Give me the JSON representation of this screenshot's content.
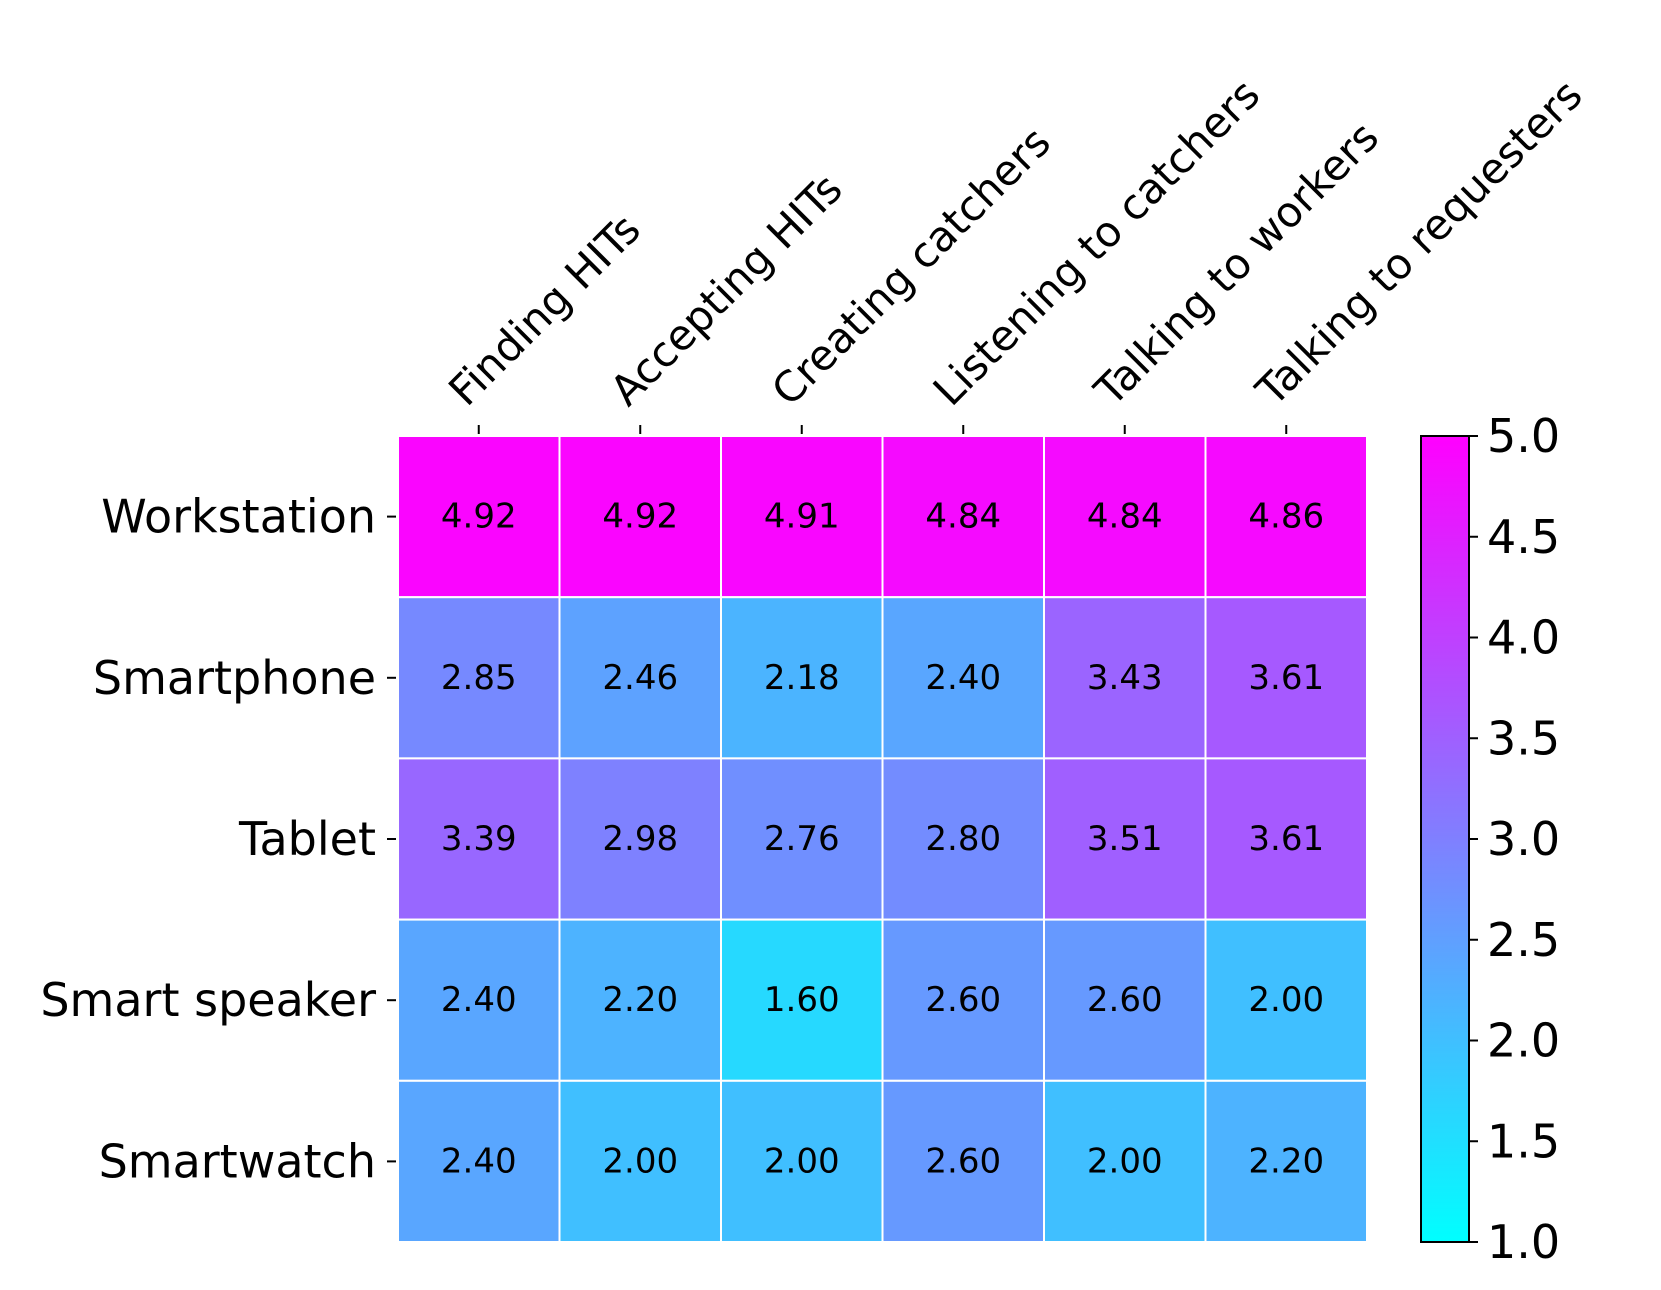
{
  "chart_data": {
    "type": "heatmap",
    "title": "",
    "xlabel": "",
    "ylabel": "",
    "x_labels": [
      "Finding HITs",
      "Accepting HITs",
      "Creating catchers",
      "Listening to catchers",
      "Talking to workers",
      "Talking to requesters"
    ],
    "y_labels": [
      "Workstation",
      "Smartphone",
      "Tablet",
      "Smart speaker",
      "Smartwatch"
    ],
    "values": [
      [
        4.92,
        4.92,
        4.91,
        4.84,
        4.84,
        4.86
      ],
      [
        2.85,
        2.46,
        2.18,
        2.4,
        3.43,
        3.61
      ],
      [
        3.39,
        2.98,
        2.76,
        2.8,
        3.51,
        3.61
      ],
      [
        2.4,
        2.2,
        1.6,
        2.6,
        2.6,
        2.0
      ],
      [
        2.4,
        2.0,
        2.0,
        2.6,
        2.0,
        2.2
      ]
    ],
    "value_labels": [
      [
        "4.92",
        "4.92",
        "4.91",
        "4.84",
        "4.84",
        "4.86"
      ],
      [
        "2.85",
        "2.46",
        "2.18",
        "2.40",
        "3.43",
        "3.61"
      ],
      [
        "3.39",
        "2.98",
        "2.76",
        "2.80",
        "3.51",
        "3.61"
      ],
      [
        "2.40",
        "2.20",
        "1.60",
        "2.60",
        "2.60",
        "2.00"
      ],
      [
        "2.40",
        "2.00",
        "2.00",
        "2.60",
        "2.00",
        "2.20"
      ]
    ],
    "colormap": "cool",
    "colormap_start": "#00ffff",
    "colormap_end": "#ff00ff",
    "cell_border_color": "#ffffff",
    "colorbar": {
      "range": [
        1.0,
        5.0
      ],
      "ticks": [
        1.0,
        1.5,
        2.0,
        2.5,
        3.0,
        3.5,
        4.0,
        4.5,
        5.0
      ],
      "tick_labels": [
        "1.0",
        "1.5",
        "2.0",
        "2.5",
        "3.0",
        "3.5",
        "4.0",
        "4.5",
        "5.0"
      ]
    }
  }
}
